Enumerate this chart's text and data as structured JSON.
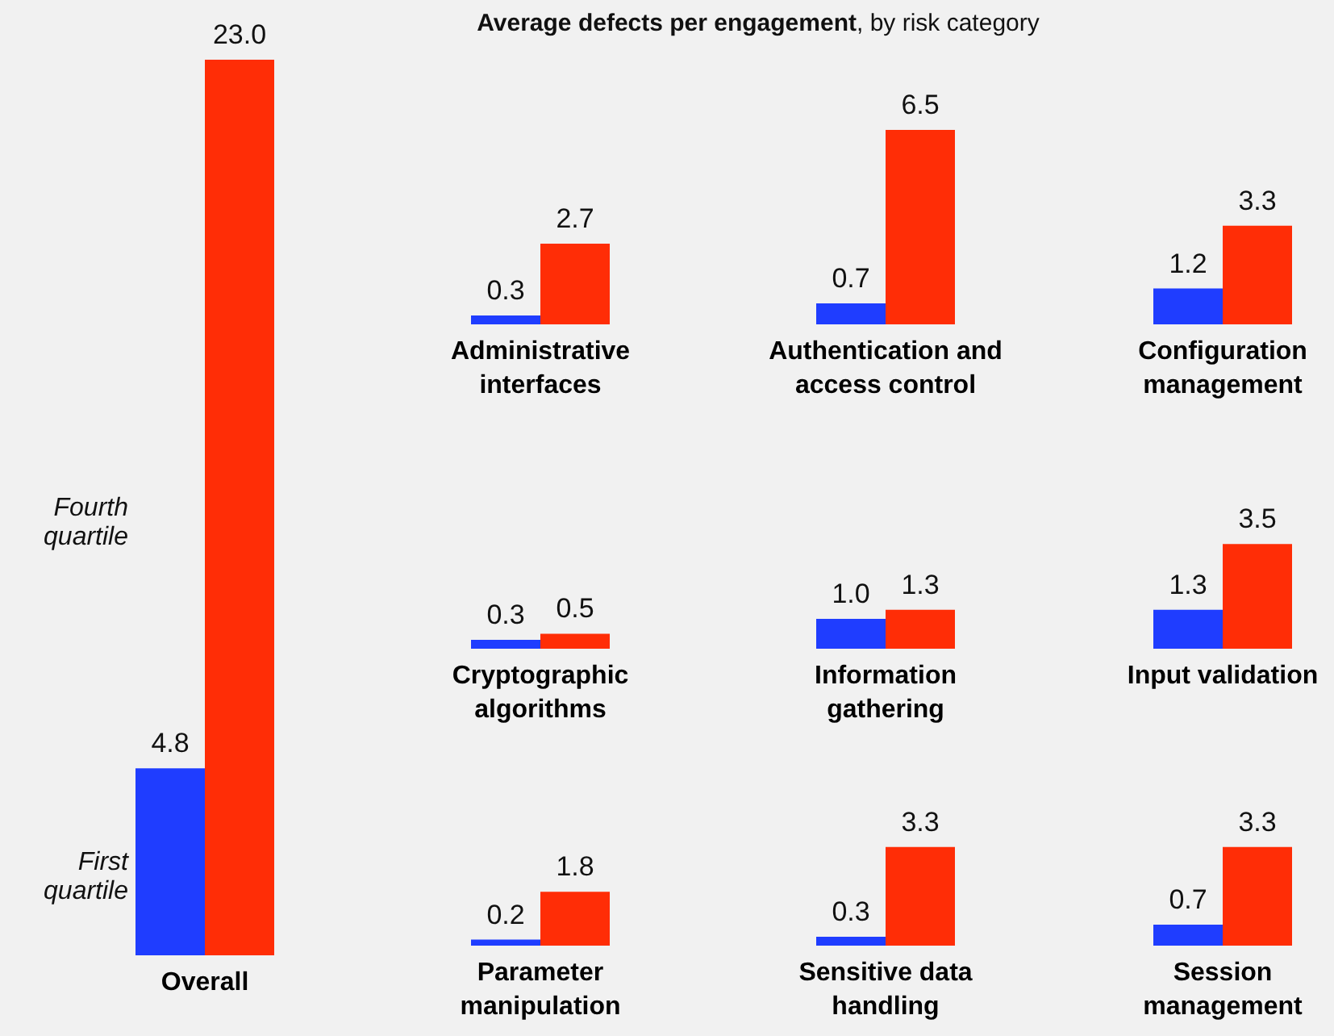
{
  "chart_data": [
    {
      "type": "bar",
      "categories": [
        "Overall"
      ],
      "series": [
        {
          "name": "First quartile",
          "color": "#1f3dff",
          "values": [
            4.8
          ],
          "value_labels": [
            "4.8"
          ]
        },
        {
          "name": "Fourth quartile",
          "color": "#ff2d06",
          "values": [
            23.0
          ],
          "value_labels": [
            "23.0"
          ]
        }
      ]
    },
    {
      "type": "bar",
      "categories": [
        "Administrative interfaces"
      ],
      "series": [
        {
          "color": "#1f3dff",
          "values": [
            0.3
          ],
          "value_labels": [
            "0.3"
          ]
        },
        {
          "color": "#ff2d06",
          "values": [
            2.7
          ],
          "value_labels": [
            "2.7"
          ]
        }
      ]
    },
    {
      "type": "bar",
      "title": "Average defects per engagement",
      "subtitle": ", by risk category",
      "categories": [
        "Authentication and access control"
      ],
      "series": [
        {
          "color": "#1f3dff",
          "values": [
            0.7
          ],
          "value_labels": [
            "0.7"
          ]
        },
        {
          "color": "#ff2d06",
          "values": [
            6.5
          ],
          "value_labels": [
            "6.5"
          ]
        }
      ]
    },
    {
      "type": "bar",
      "categories": [
        "Configuration management"
      ],
      "series": [
        {
          "color": "#1f3dff",
          "values": [
            1.2
          ],
          "value_labels": [
            "1.2"
          ]
        },
        {
          "color": "#ff2d06",
          "values": [
            3.3
          ],
          "value_labels": [
            "3.3"
          ]
        }
      ]
    },
    {
      "type": "bar",
      "categories": [
        "Cryptographic algorithms"
      ],
      "series": [
        {
          "color": "#1f3dff",
          "values": [
            0.3
          ],
          "value_labels": [
            "0.3"
          ]
        },
        {
          "color": "#ff2d06",
          "values": [
            0.5
          ],
          "value_labels": [
            "0.5"
          ]
        }
      ]
    },
    {
      "type": "bar",
      "categories": [
        "Information gathering"
      ],
      "series": [
        {
          "color": "#1f3dff",
          "values": [
            1.0
          ],
          "value_labels": [
            "1.0"
          ]
        },
        {
          "color": "#ff2d06",
          "values": [
            1.3
          ],
          "value_labels": [
            "1.3"
          ]
        }
      ]
    },
    {
      "type": "bar",
      "categories": [
        "Input validation"
      ],
      "series": [
        {
          "color": "#1f3dff",
          "values": [
            1.3
          ],
          "value_labels": [
            "1.3"
          ]
        },
        {
          "color": "#ff2d06",
          "values": [
            3.5
          ],
          "value_labels": [
            "3.5"
          ]
        }
      ]
    },
    {
      "type": "bar",
      "categories": [
        "Parameter manipulation"
      ],
      "series": [
        {
          "color": "#1f3dff",
          "values": [
            0.2
          ],
          "value_labels": [
            "0.2"
          ]
        },
        {
          "color": "#ff2d06",
          "values": [
            1.8
          ],
          "value_labels": [
            "1.8"
          ]
        }
      ]
    },
    {
      "type": "bar",
      "categories": [
        "Sensitive data handling"
      ],
      "series": [
        {
          "color": "#1f3dff",
          "values": [
            0.3
          ],
          "value_labels": [
            "0.3"
          ]
        },
        {
          "color": "#ff2d06",
          "values": [
            3.3
          ],
          "value_labels": [
            "3.3"
          ]
        }
      ]
    },
    {
      "type": "bar",
      "categories": [
        "Session management"
      ],
      "series": [
        {
          "color": "#1f3dff",
          "values": [
            0.7
          ],
          "value_labels": [
            "0.7"
          ]
        },
        {
          "color": "#ff2d06",
          "values": [
            3.3
          ],
          "value_labels": [
            "3.3"
          ]
        }
      ]
    }
  ]
}
